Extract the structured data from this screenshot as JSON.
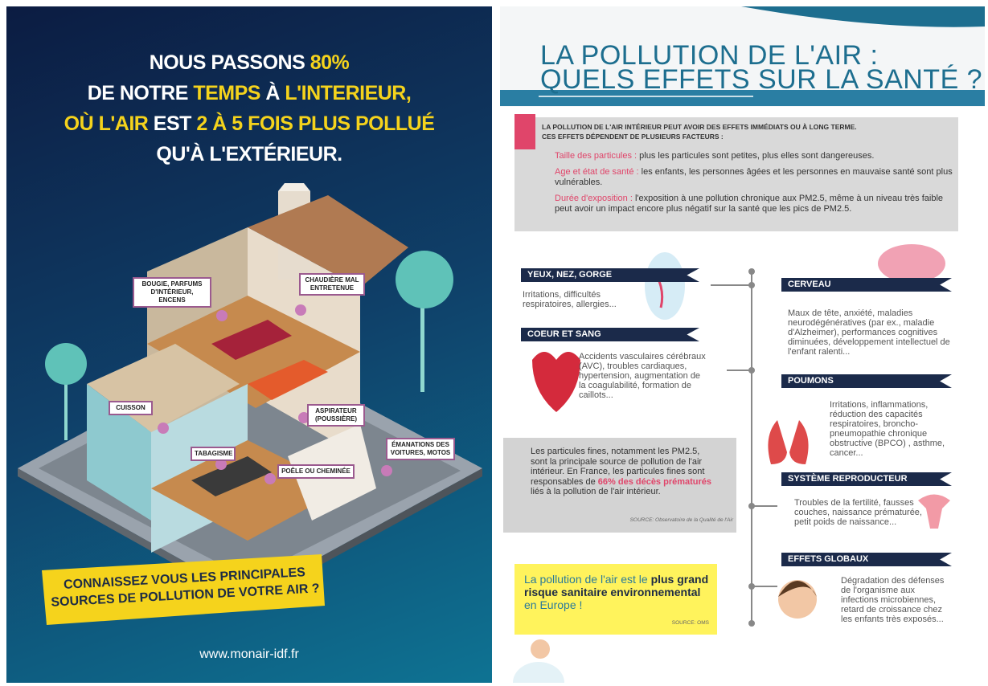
{
  "left": {
    "headline": [
      [
        {
          "text": "NOUS PASSONS ",
          "color": "#ffffff"
        },
        {
          "text": "80%",
          "color": "#f5d31c"
        }
      ],
      [
        {
          "text": "DE NOTRE ",
          "color": "#ffffff"
        },
        {
          "text": "TEMPS",
          "color": "#f5d31c"
        },
        {
          "text": " À ",
          "color": "#ffffff"
        },
        {
          "text": "L'INTERIEUR,",
          "color": "#f5d31c"
        }
      ],
      [
        {
          "text": "OÙ L'AIR ",
          "color": "#f5d31c"
        },
        {
          "text": "EST ",
          "color": "#ffffff"
        },
        {
          "text": "2 À 5 FOIS PLUS POLLUÉ",
          "color": "#f5d31c"
        }
      ],
      [
        {
          "text": "QU'À L'EXTÉRIEUR.",
          "color": "#ffffff"
        }
      ]
    ],
    "labels": [
      "BOUGIE, PARFUMS D'INTÉRIEUR, ENCENS",
      "CHAUDIÈRE MAL ENTRETENUE",
      "CUISSON",
      "ASPIRATEUR (POUSSIÈRE)",
      "TABAGISME",
      "POÊLE OU CHEMINÉE",
      "ÉMANATIONS DES VOITURES, MOTOS"
    ],
    "question": [
      "CONNAISSEZ VOUS LES PRINCIPALES",
      "SOURCES DE POLLUTION DE VOTRE AIR ?"
    ],
    "url": "www.monair-idf.fr"
  },
  "right": {
    "title": [
      "LA POLLUTION DE L'AIR :",
      "QUELS EFFETS SUR LA SANTÉ ?"
    ],
    "intro": {
      "heading": [
        "LA POLLUTION DE L'AIR INTÉRIEUR PEUT AVOIR DES EFFETS IMMÉDIATS OU À LONG TERME.",
        "CES EFFETS DÉPENDENT DE PLUSIEURS FACTEURS :"
      ],
      "factors": [
        {
          "term": "Taille des particules :",
          "text": " plus les particules sont petites, plus elles sont dangereuses."
        },
        {
          "term": "Age et état de santé :",
          "text": " les enfants, les personnes âgées et les personnes en mauvaise santé sont plus vulnérables."
        },
        {
          "term": "Durée d'exposition :",
          "text": " l'exposition à une pollution chronique aux PM2.5, même à un niveau très faible peut avoir un impact encore plus négatif sur la santé que les pics de PM2.5."
        }
      ]
    },
    "effects": [
      {
        "title": "YEUX, NEZ, GORGE",
        "text": "Irritations, difficultés respiratoires, allergies..."
      },
      {
        "title": "COEUR ET SANG",
        "text": "Accidents vasculaires cérébraux (AVC), troubles cardiaques, hypertension, augmentation de la coagulabilité, formation de caillots..."
      },
      {
        "title": "CERVEAU",
        "text": "Maux de tête, anxiété, maladies neurodégénératives (par ex., maladie d'Alzheimer), performances cognitives diminuées, développement intellectuel de l'enfant ralenti..."
      },
      {
        "title": "POUMONS",
        "text": "Irritations, inflammations, réduction des capacités respiratoires, broncho-pneumopathie chronique obstructive (BPCO) , asthme, cancer..."
      },
      {
        "title": "SYSTÈME REPRODUCTEUR",
        "text": "Troubles de la fertilité, fausses couches, naissance prématurée, petit poids de naissance..."
      },
      {
        "title": "EFFETS GLOBAUX",
        "text": "Dégradation des défenses de l'organisme aux infections microbiennes, retard de croissance chez les enfants très exposés..."
      }
    ],
    "note": {
      "segments": [
        {
          "text": "Les particules fines, notamment les PM2.5, sont la principale source de pollution de l'air intérieur. En France, les particules fines sont responsables de ",
          "color": "#333333"
        },
        {
          "text": "66% des décès prématurés",
          "color": "#e0456a"
        },
        {
          "text": " liés à la pollution de l'air intérieur.",
          "color": "#333333"
        }
      ],
      "source": "SOURCE: Observatoire de la Qualité de l'Air"
    },
    "highlight": {
      "segments": [
        {
          "text": "La pollution de l'air est le ",
          "color": "#2a7a9a"
        },
        {
          "text": "plus grand risque sanitaire environnemental",
          "color": "#1d2b45"
        },
        {
          "text": " en Europe !",
          "color": "#2a7a9a"
        }
      ],
      "source": "SOURCE: OMS"
    }
  }
}
